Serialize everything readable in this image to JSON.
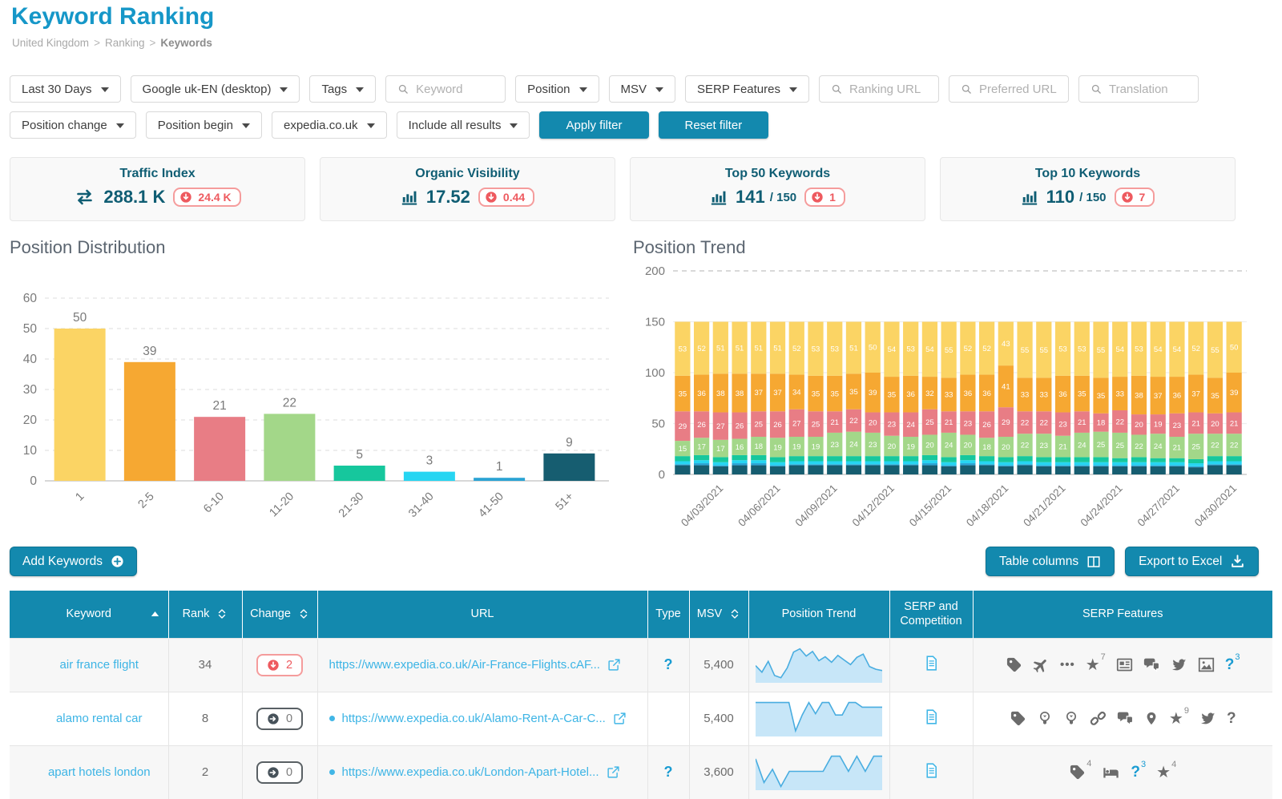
{
  "page": {
    "title": "Keyword Ranking",
    "breadcrumb": [
      "United Kingdom",
      "Ranking",
      "Keywords"
    ]
  },
  "colors": {
    "accent": "#1389ae",
    "title_blue": "#1697c8",
    "link_blue": "#3cb4e5",
    "dark_teal": "#0f5d73",
    "red": "#ee5a5f",
    "red_border": "#f59c9c",
    "icon_grey": "#6b6b6b",
    "buckets": {
      "1": "#fbd464",
      "2-5": "#f6a832",
      "6-10": "#e87d85",
      "11-20": "#a3d789",
      "21-30": "#16c79d",
      "31-40": "#27d5f2",
      "41-50": "#2ba3d4",
      "51+": "#165d70"
    }
  },
  "filters": {
    "row1": [
      {
        "type": "dropdown",
        "label": "Last 30 Days"
      },
      {
        "type": "dropdown",
        "label": "Google uk-EN (desktop)"
      },
      {
        "type": "dropdown",
        "label": "Tags"
      },
      {
        "type": "search",
        "placeholder": "Keyword"
      },
      {
        "type": "dropdown",
        "label": "Position"
      },
      {
        "type": "dropdown",
        "label": "MSV"
      },
      {
        "type": "dropdown",
        "label": "SERP Features"
      },
      {
        "type": "search",
        "placeholder": "Ranking URL"
      },
      {
        "type": "search",
        "placeholder": "Preferred URL"
      },
      {
        "type": "search",
        "placeholder": "Translation"
      }
    ],
    "row2": [
      {
        "type": "dropdown",
        "label": "Position change"
      },
      {
        "type": "dropdown",
        "label": "Position begin"
      },
      {
        "type": "dropdown",
        "label": "expedia.co.uk"
      },
      {
        "type": "dropdown",
        "label": "Include all results"
      },
      {
        "type": "button",
        "label": "Apply filter"
      },
      {
        "type": "button",
        "label": "Reset filter"
      }
    ]
  },
  "stat_cards": [
    {
      "title": "Traffic Index",
      "icon": "swap-arrows",
      "value": "288.1 K",
      "suffix": "",
      "delta": "24.4 K"
    },
    {
      "title": "Organic Visibility",
      "icon": "bar-chart",
      "value": "17.52",
      "suffix": "",
      "delta": "0.44"
    },
    {
      "title": "Top 50 Keywords",
      "icon": "bar-chart",
      "value": "141",
      "suffix": "/ 150",
      "delta": "1"
    },
    {
      "title": "Top 10 Keywords",
      "icon": "bar-chart",
      "value": "110",
      "suffix": "/ 150",
      "delta": "7"
    }
  ],
  "chart_data": [
    {
      "type": "bar",
      "title": "Position Distribution",
      "categories": [
        "1",
        "2-5",
        "6-10",
        "11-20",
        "21-30",
        "31-40",
        "41-50",
        "51+"
      ],
      "values": [
        50,
        39,
        21,
        22,
        5,
        3,
        1,
        9
      ],
      "bar_colors": [
        "#fbd464",
        "#f6a832",
        "#e87d85",
        "#a3d789",
        "#16c79d",
        "#27d5f2",
        "#2ba3d4",
        "#165d70"
      ],
      "xlabel": "",
      "ylabel": "",
      "ylim": [
        0,
        60
      ],
      "yticks": [
        0,
        10,
        20,
        30,
        40,
        50,
        60
      ],
      "grid": "dashed"
    },
    {
      "type": "bar",
      "stacked": true,
      "title": "Position Trend",
      "x": [
        "04/01/2021",
        "04/02/2021",
        "04/03/2021",
        "04/04/2021",
        "04/05/2021",
        "04/06/2021",
        "04/07/2021",
        "04/08/2021",
        "04/09/2021",
        "04/10/2021",
        "04/11/2021",
        "04/12/2021",
        "04/13/2021",
        "04/14/2021",
        "04/15/2021",
        "04/16/2021",
        "04/17/2021",
        "04/18/2021",
        "04/19/2021",
        "04/20/2021",
        "04/21/2021",
        "04/22/2021",
        "04/23/2021",
        "04/24/2021",
        "04/25/2021",
        "04/26/2021",
        "04/27/2021",
        "04/28/2021",
        "04/29/2021",
        "04/30/2021"
      ],
      "tick_labels": [
        "04/03/2021",
        "04/06/2021",
        "04/09/2021",
        "04/12/2021",
        "04/15/2021",
        "04/18/2021",
        "04/21/2021",
        "04/24/2021",
        "04/27/2021",
        "04/30/2021"
      ],
      "first_tick_index": 2,
      "tick_every": 3,
      "series": [
        {
          "name": "51+",
          "color": "#165d70",
          "values": [
            9,
            9,
            8,
            9,
            9,
            8,
            9,
            9,
            9,
            9,
            9,
            9,
            9,
            9,
            8,
            9,
            9,
            8,
            9,
            8,
            8,
            8,
            8,
            8,
            8,
            8,
            8,
            7,
            9,
            9
          ]
        },
        {
          "name": "41-50",
          "color": "#2ba3d4",
          "values": [
            1,
            2,
            1,
            2,
            2,
            1,
            1,
            1,
            1,
            1,
            1,
            1,
            1,
            2,
            1,
            2,
            1,
            1,
            1,
            1,
            1,
            1,
            1,
            1,
            1,
            1,
            1,
            1,
            1,
            1
          ]
        },
        {
          "name": "31-40",
          "color": "#27d5f2",
          "values": [
            3,
            3,
            3,
            3,
            3,
            3,
            3,
            3,
            3,
            3,
            3,
            3,
            3,
            3,
            3,
            3,
            3,
            3,
            3,
            3,
            3,
            3,
            3,
            3,
            3,
            3,
            3,
            3,
            3,
            3
          ]
        },
        {
          "name": "21-30",
          "color": "#16c79d",
          "values": [
            5,
            5,
            5,
            5,
            5,
            5,
            5,
            5,
            5,
            5,
            5,
            5,
            5,
            5,
            5,
            5,
            5,
            5,
            5,
            5,
            5,
            5,
            5,
            4,
            5,
            4,
            4,
            4,
            5,
            5
          ]
        },
        {
          "name": "11-20",
          "color": "#a3d789",
          "values": [
            15,
            17,
            17,
            16,
            18,
            19,
            19,
            19,
            23,
            24,
            23,
            20,
            19,
            20,
            24,
            20,
            18,
            20,
            22,
            23,
            21,
            24,
            25,
            25,
            22,
            24,
            21,
            25,
            22,
            22
          ]
        },
        {
          "name": "6-10",
          "color": "#e87d85",
          "values": [
            29,
            26,
            27,
            26,
            25,
            26,
            27,
            25,
            21,
            22,
            20,
            23,
            24,
            25,
            21,
            23,
            26,
            29,
            22,
            22,
            23,
            21,
            18,
            22,
            20,
            19,
            23,
            21,
            20,
            21
          ]
        },
        {
          "name": "2-5",
          "color": "#f6a832",
          "values": [
            35,
            36,
            38,
            38,
            37,
            37,
            34,
            35,
            35,
            35,
            39,
            35,
            36,
            32,
            33,
            36,
            36,
            41,
            33,
            33,
            36,
            35,
            35,
            33,
            38,
            37,
            36,
            37,
            35,
            39
          ]
        },
        {
          "name": "1",
          "color": "#fbd464",
          "values": [
            53,
            52,
            51,
            51,
            51,
            51,
            52,
            53,
            53,
            51,
            50,
            54,
            53,
            54,
            55,
            52,
            52,
            43,
            55,
            55,
            53,
            53,
            55,
            54,
            53,
            54,
            54,
            52,
            55,
            50
          ]
        }
      ],
      "ylim": [
        0,
        200
      ],
      "yticks": [
        0,
        50,
        100,
        150,
        200
      ]
    }
  ],
  "actions": {
    "add_keywords": "Add Keywords",
    "table_columns": "Table columns",
    "export_excel": "Export to Excel"
  },
  "table": {
    "columns": [
      {
        "label": "SERP Features",
        "key": "serp_features"
      }
    ],
    "headers": [
      {
        "label": "Keyword",
        "sort": "asc"
      },
      {
        "label": "Rank",
        "sort": "both"
      },
      {
        "label": "Change",
        "sort": "both"
      },
      {
        "label": "URL",
        "sort": "none"
      },
      {
        "label": "Type",
        "sort": "none"
      },
      {
        "label": "MSV",
        "sort": "both"
      },
      {
        "label": "Position Trend",
        "sort": "none"
      },
      {
        "label": "SERP and Competition",
        "sort": "none"
      },
      {
        "label": "SERP Features",
        "sort": "none"
      }
    ],
    "rows": [
      {
        "keyword": "air france flight",
        "rank": "34",
        "change": {
          "dir": "down",
          "value": "2"
        },
        "url": {
          "text": "https://www.expedia.co.uk/Air-France-Flights.cAF...",
          "bullet": false
        },
        "type": "?",
        "msv": "5,400",
        "spark": [
          45,
          25,
          58,
          15,
          8,
          38,
          86,
          96,
          74,
          88,
          60,
          72,
          55,
          76,
          62,
          48,
          70,
          80,
          42,
          34,
          30
        ],
        "serp_competition": "document",
        "serp_features": [
          {
            "icon": "tag"
          },
          {
            "icon": "airplane"
          },
          {
            "icon": "ellipsis"
          },
          {
            "icon": "star",
            "count": "7"
          },
          {
            "icon": "news"
          },
          {
            "icon": "chat"
          },
          {
            "icon": "twitter"
          },
          {
            "icon": "image"
          },
          {
            "icon": "question",
            "count": "3",
            "accent": true
          }
        ]
      },
      {
        "keyword": "alamo rental car",
        "rank": "8",
        "change": {
          "dir": "zero",
          "value": "0"
        },
        "url": {
          "text": "https://www.expedia.co.uk/Alamo-Rent-A-Car-C...",
          "bullet": true
        },
        "type": "",
        "msv": "5,400",
        "spark": [
          96,
          96,
          96,
          96,
          96,
          96,
          10,
          58,
          96,
          62,
          96,
          96,
          58,
          58,
          96,
          96,
          82,
          82,
          82,
          82
        ],
        "serp_competition": "document",
        "serp_features": [
          {
            "icon": "tag"
          },
          {
            "icon": "bulb"
          },
          {
            "icon": "bulb"
          },
          {
            "icon": "links"
          },
          {
            "icon": "chat"
          },
          {
            "icon": "pin"
          },
          {
            "icon": "star",
            "count": "9"
          },
          {
            "icon": "twitter"
          },
          {
            "icon": "question"
          }
        ]
      },
      {
        "keyword": "apart hotels london",
        "rank": "2",
        "change": {
          "dir": "zero",
          "value": "0"
        },
        "url": {
          "text": "https://www.expedia.co.uk/London-Apart-Hotel...",
          "bullet": true
        },
        "type": "?",
        "msv": "3,600",
        "spark": [
          88,
          16,
          56,
          4,
          50,
          50,
          50,
          50,
          50,
          96,
          96,
          50,
          96,
          50,
          96,
          96
        ],
        "serp_competition": "document",
        "serp_features": [
          {
            "icon": "tag",
            "count": "4"
          },
          {
            "icon": "bed"
          },
          {
            "icon": "question",
            "count": "3",
            "accent": true
          },
          {
            "icon": "star",
            "count": "4"
          }
        ]
      }
    ]
  }
}
